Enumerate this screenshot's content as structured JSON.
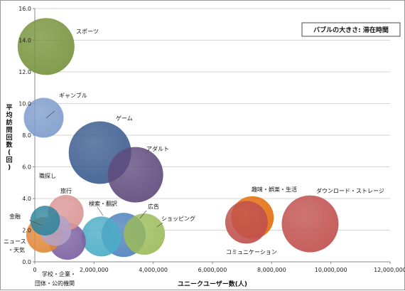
{
  "chart_data": {
    "type": "bubble",
    "title": "",
    "size_note": "バブルの大きさ: 滞在時間",
    "xlabel": "ユニークユーザー数(人)",
    "ylabel": "平均訪問回数(回)",
    "xlim": [
      0,
      12000000
    ],
    "ylim": [
      0,
      16
    ],
    "x_ticks": [
      0,
      2000000,
      4000000,
      6000000,
      8000000,
      10000000,
      12000000
    ],
    "x_tick_labels": [
      "0",
      "2,000,000",
      "4,000,000",
      "6,000,000",
      "8,000,000",
      "10,000,000",
      "12,000,000"
    ],
    "y_ticks": [
      0,
      2,
      4,
      6,
      8,
      10,
      12,
      14,
      16
    ],
    "y_tick_labels": [
      "0.0",
      "2.0",
      "4.0",
      "6.0",
      "8.0",
      "10.0",
      "12.0",
      "14.0",
      "16.0"
    ],
    "grid": "horizontal",
    "series": [
      {
        "name": "スポーツ",
        "x": 380000,
        "y": 13.6,
        "size": 40,
        "color": "#77933c"
      },
      {
        "name": "ギャンブル",
        "x": 300000,
        "y": 9.1,
        "size": 28,
        "color": "#7e9ccc"
      },
      {
        "name": "ゲーム",
        "x": 2200000,
        "y": 6.9,
        "size": 44,
        "color": "#3c5c8f"
      },
      {
        "name": "アダルト",
        "x": 3400000,
        "y": 5.5,
        "size": 39,
        "color": "#5f4a7c"
      },
      {
        "name": "職探し",
        "x": 350000,
        "y": 2.6,
        "size": 21,
        "color": "#31859c"
      },
      {
        "name": "ニュース・天気",
        "x": 310000,
        "y": 1.7,
        "size": 25,
        "color": "#e0883a"
      },
      {
        "name": "学校・企業・団体・公的機関",
        "x": 1100000,
        "y": 1.3,
        "size": 26,
        "color": "#7a60a0"
      },
      {
        "name": "旅行",
        "x": 1050000,
        "y": 3.1,
        "size": 25,
        "color": "#da9594"
      },
      {
        "name": "金融",
        "x": 700000,
        "y": 2.0,
        "size": 22,
        "color": "#b3a2c7"
      },
      {
        "name": "検索・翻訳",
        "x": 2250000,
        "y": 1.6,
        "size": 28,
        "color": "#4bacc6"
      },
      {
        "name": "広告",
        "x": 3000000,
        "y": 1.7,
        "size": 31,
        "color": "#4f81bd"
      },
      {
        "name": "ショッピング",
        "x": 3700000,
        "y": 1.75,
        "size": 29,
        "color": "#9bbb59"
      },
      {
        "name": "趣味・娯楽・生活",
        "x": 7350000,
        "y": 2.8,
        "size": 30,
        "color": "#e46c0a"
      },
      {
        "name": "コミュニケーション",
        "x": 7150000,
        "y": 2.5,
        "size": 30,
        "color": "#c0504d"
      },
      {
        "name": "ダウンロード・ストレージ",
        "x": 9300000,
        "y": 2.4,
        "size": 40,
        "color": "#c0504d"
      }
    ]
  }
}
